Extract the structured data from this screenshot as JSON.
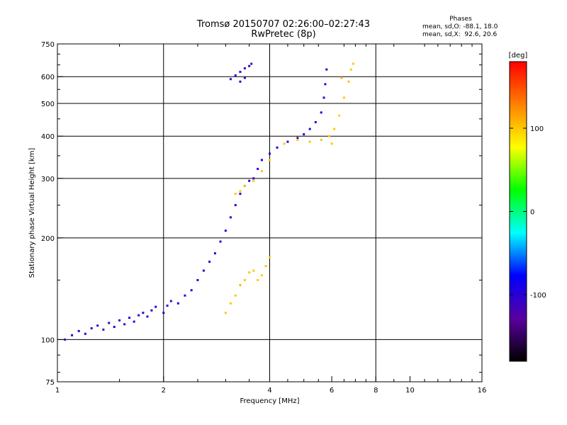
{
  "title_line1": "Tromsø 20150707 02:26:00–02:27:43",
  "title_line2": "RwPretec (8p)",
  "phase_box": {
    "heading": "Phases",
    "line_o": "mean, sd,O: -88.1, 18.0",
    "line_x": "mean, sd,X:  92.6, 20.6"
  },
  "colorbar": {
    "label": "[deg]",
    "ticks": [
      "100",
      "0",
      "-100"
    ],
    "tick_values": [
      100,
      0,
      -100
    ],
    "range": [
      -180,
      180
    ],
    "colormap": [
      "#000000",
      "#5a00a0",
      "#0000ff",
      "#00ffff",
      "#00ff00",
      "#ffff00",
      "#ff8000",
      "#ff0000"
    ]
  },
  "chart_data": {
    "type": "scatter",
    "title": "Tromsø 20150707 02:26:00–02:27:43",
    "subtitle": "RwPretec (8p)",
    "xlabel": "Frequency [MHz]",
    "ylabel": "Stationary phase Virtual Height [km]",
    "xscale": "log2",
    "yscale": "log",
    "xlim": [
      1,
      16
    ],
    "ylim": [
      75,
      750
    ],
    "xticks": [
      1,
      2,
      4,
      6,
      8,
      10,
      16
    ],
    "xtick_labels": [
      "1",
      "2",
      "4",
      "6",
      "8",
      "10",
      "16"
    ],
    "yticks": [
      75,
      100,
      200,
      300,
      400,
      500,
      600,
      750
    ],
    "ytick_labels": [
      "75",
      "100",
      "200",
      "300",
      "400",
      "500",
      "600",
      "750"
    ],
    "grid_x": [
      2,
      4,
      8
    ],
    "grid_y": [
      100,
      200,
      300,
      400,
      500,
      600
    ],
    "grid": true,
    "series": [
      {
        "points": [
          [
            1.05,
            100,
            -100
          ],
          [
            1.1,
            103,
            -110
          ],
          [
            1.15,
            106,
            -95
          ],
          [
            1.2,
            104,
            -100
          ],
          [
            1.25,
            108,
            -105
          ],
          [
            1.3,
            110,
            -100
          ],
          [
            1.35,
            107,
            -110
          ],
          [
            1.4,
            112,
            -100
          ],
          [
            1.45,
            109,
            -100
          ],
          [
            1.5,
            114,
            -105
          ],
          [
            1.55,
            111,
            -100
          ],
          [
            1.6,
            116,
            -100
          ],
          [
            1.65,
            113,
            -105
          ],
          [
            1.7,
            118,
            -100
          ],
          [
            1.75,
            120,
            -100
          ],
          [
            1.8,
            117,
            -100
          ],
          [
            1.85,
            122,
            -95
          ],
          [
            1.9,
            125,
            -100
          ],
          [
            2.0,
            120,
            -100
          ],
          [
            2.05,
            126,
            -105
          ],
          [
            2.1,
            130,
            -100
          ],
          [
            2.2,
            128,
            -100
          ],
          [
            2.3,
            135,
            -100
          ],
          [
            2.4,
            140,
            -100
          ],
          [
            2.5,
            150,
            -105
          ],
          [
            2.6,
            160,
            -100
          ],
          [
            2.7,
            170,
            -100
          ],
          [
            2.8,
            180,
            -100
          ],
          [
            2.9,
            195,
            -100
          ],
          [
            3.0,
            210,
            -100
          ],
          [
            3.1,
            230,
            -100
          ],
          [
            3.2,
            250,
            -100
          ],
          [
            3.3,
            270,
            -100
          ],
          [
            3.4,
            285,
            -100
          ],
          [
            3.5,
            295,
            -105
          ],
          [
            3.6,
            300,
            -100
          ],
          [
            3.7,
            320,
            -100
          ],
          [
            3.8,
            340,
            -100
          ],
          [
            4.0,
            355,
            -100
          ],
          [
            4.2,
            370,
            -100
          ],
          [
            4.5,
            385,
            -100
          ],
          [
            4.8,
            395,
            -100
          ],
          [
            5.0,
            405,
            -100
          ],
          [
            5.2,
            420,
            -100
          ],
          [
            5.4,
            440,
            -100
          ],
          [
            5.6,
            470,
            -100
          ],
          [
            5.7,
            520,
            -100
          ],
          [
            5.75,
            570,
            -100
          ],
          [
            5.8,
            630,
            -100
          ],
          [
            3.1,
            590,
            -110
          ],
          [
            3.2,
            605,
            -110
          ],
          [
            3.3,
            620,
            -110
          ],
          [
            3.4,
            635,
            -110
          ],
          [
            3.5,
            645,
            -110
          ],
          [
            3.55,
            655,
            -110
          ],
          [
            3.3,
            580,
            -110
          ],
          [
            3.4,
            595,
            -110
          ]
        ]
      },
      {
        "points": [
          [
            3.0,
            120,
            100
          ],
          [
            3.1,
            128,
            100
          ],
          [
            3.2,
            135,
            100
          ],
          [
            3.3,
            145,
            105
          ],
          [
            3.4,
            150,
            100
          ],
          [
            3.5,
            158,
            100
          ],
          [
            3.6,
            160,
            100
          ],
          [
            3.7,
            150,
            100
          ],
          [
            3.8,
            155,
            95
          ],
          [
            3.9,
            165,
            100
          ],
          [
            4.0,
            175,
            95
          ],
          [
            3.2,
            270,
            100
          ],
          [
            3.3,
            275,
            100
          ],
          [
            3.4,
            285,
            100
          ],
          [
            3.6,
            295,
            100
          ],
          [
            3.8,
            315,
            100
          ],
          [
            4.0,
            340,
            100
          ],
          [
            4.4,
            380,
            100
          ],
          [
            4.8,
            390,
            100
          ],
          [
            5.2,
            385,
            100
          ],
          [
            5.6,
            390,
            100
          ],
          [
            5.9,
            400,
            100
          ],
          [
            6.1,
            420,
            100
          ],
          [
            6.3,
            460,
            95
          ],
          [
            6.5,
            520,
            100
          ],
          [
            6.7,
            580,
            100
          ],
          [
            6.8,
            630,
            100
          ],
          [
            6.9,
            655,
            100
          ],
          [
            6.4,
            595,
            105
          ],
          [
            6.0,
            380,
            100
          ]
        ]
      }
    ]
  }
}
